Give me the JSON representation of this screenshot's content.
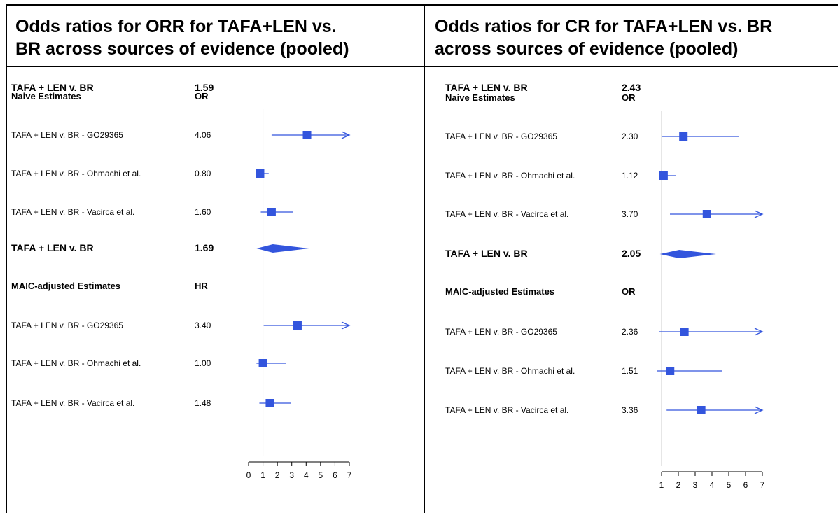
{
  "panels": [
    {
      "title_line1": "Odds ratios for ORR for TAFA+LEN vs.",
      "title_line2": "BR across sources of evidence (pooled)"
    },
    {
      "title_line1": "Odds ratios for CR for TAFA+LEN vs. BR",
      "title_line2": "across sources of evidence (pooled)"
    }
  ],
  "chart_data": [
    {
      "type": "forest",
      "title": "Odds ratios for ORR for TAFA+LEN vs. BR across sources of evidence (pooled)",
      "xlim": [
        0,
        7
      ],
      "ticks": [
        0,
        1,
        2,
        3,
        4,
        5,
        6,
        7
      ],
      "reference_line": 1,
      "marker_color": "#3355dd",
      "sections": [
        {
          "name": "Naive Estimates",
          "column": "OR",
          "rows": [
            {
              "label": "TAFA + LEN v. BR - GO29365",
              "value_text": "4.06",
              "est": 4.06,
              "lo": 1.6,
              "hi": 7.0,
              "arrow": true
            },
            {
              "label": "TAFA + LEN v. BR - Ohmachi et al.",
              "value_text": "0.80",
              "est": 0.8,
              "lo": 0.55,
              "hi": 1.4,
              "arrow": false
            },
            {
              "label": "TAFA + LEN v. BR - Vacirca et al.",
              "value_text": "1.60",
              "est": 1.6,
              "lo": 0.85,
              "hi": 3.1,
              "arrow": false
            }
          ],
          "pooled": {
            "label": "TAFA + LEN v. BR",
            "value_text": "1.69",
            "est": 1.69,
            "lo": 0.55,
            "hi": 4.2
          }
        },
        {
          "name": "MAIC-adjusted Estimates",
          "column": "HR",
          "rows": [
            {
              "label": "TAFA + LEN v. BR - GO29365",
              "value_text": "3.40",
              "est": 3.4,
              "lo": 1.05,
              "hi": 7.0,
              "arrow": true
            },
            {
              "label": "TAFA + LEN v. BR - Ohmachi et al.",
              "value_text": "1.00",
              "est": 1.0,
              "lo": 0.55,
              "hi": 2.6,
              "arrow": false
            },
            {
              "label": "TAFA + LEN v. BR - Vacirca et al.",
              "value_text": "1.48",
              "est": 1.48,
              "lo": 0.75,
              "hi": 2.95,
              "arrow": false
            }
          ],
          "pooled": {
            "label": "TAFA + LEN v. BR",
            "value_text": "1.59",
            "est": 1.59,
            "lo": 0.95,
            "hi": 2.5
          }
        }
      ]
    },
    {
      "type": "forest",
      "title": "Odds ratios for CR for TAFA+LEN vs. BR across sources of evidence (pooled)",
      "xlim": [
        1,
        7
      ],
      "ticks": [
        1,
        2,
        3,
        4,
        5,
        6,
        7
      ],
      "reference_line": 1,
      "marker_color": "#3355dd",
      "sections": [
        {
          "name": "Naive Estimates",
          "column": "OR",
          "rows": [
            {
              "label": "TAFA + LEN v. BR - GO29365",
              "value_text": "2.30",
              "est": 2.3,
              "lo": 1.0,
              "hi": 5.6,
              "arrow": false
            },
            {
              "label": "TAFA + LEN v. BR - Ohmachi et al.",
              "value_text": "1.12",
              "est": 1.12,
              "lo": 0.85,
              "hi": 1.85,
              "arrow": false
            },
            {
              "label": "TAFA + LEN v. BR - Vacirca et al.",
              "value_text": "3.70",
              "est": 3.7,
              "lo": 1.5,
              "hi": 7.0,
              "arrow": true
            }
          ],
          "pooled": {
            "label": "TAFA + LEN v. BR",
            "value_text": "2.05",
            "est": 2.05,
            "lo": 0.9,
            "hi": 4.25
          }
        },
        {
          "name": "MAIC-adjusted Estimates",
          "column": "OR",
          "rows": [
            {
              "label": "TAFA + LEN v. BR - GO29365",
              "value_text": "2.36",
              "est": 2.36,
              "lo": 0.85,
              "hi": 7.0,
              "arrow": true
            },
            {
              "label": "TAFA + LEN v. BR - Ohmachi et al.",
              "value_text": "1.51",
              "est": 1.51,
              "lo": 0.75,
              "hi": 4.6,
              "arrow": false
            },
            {
              "label": "TAFA + LEN v. BR - Vacirca et al.",
              "value_text": "3.36",
              "est": 3.36,
              "lo": 1.3,
              "hi": 7.0,
              "arrow": true
            }
          ],
          "pooled": {
            "label": "TAFA + LEN v. BR",
            "value_text": "2.43",
            "est": 2.43,
            "lo": 0.95,
            "hi": 4.4
          }
        }
      ]
    }
  ]
}
